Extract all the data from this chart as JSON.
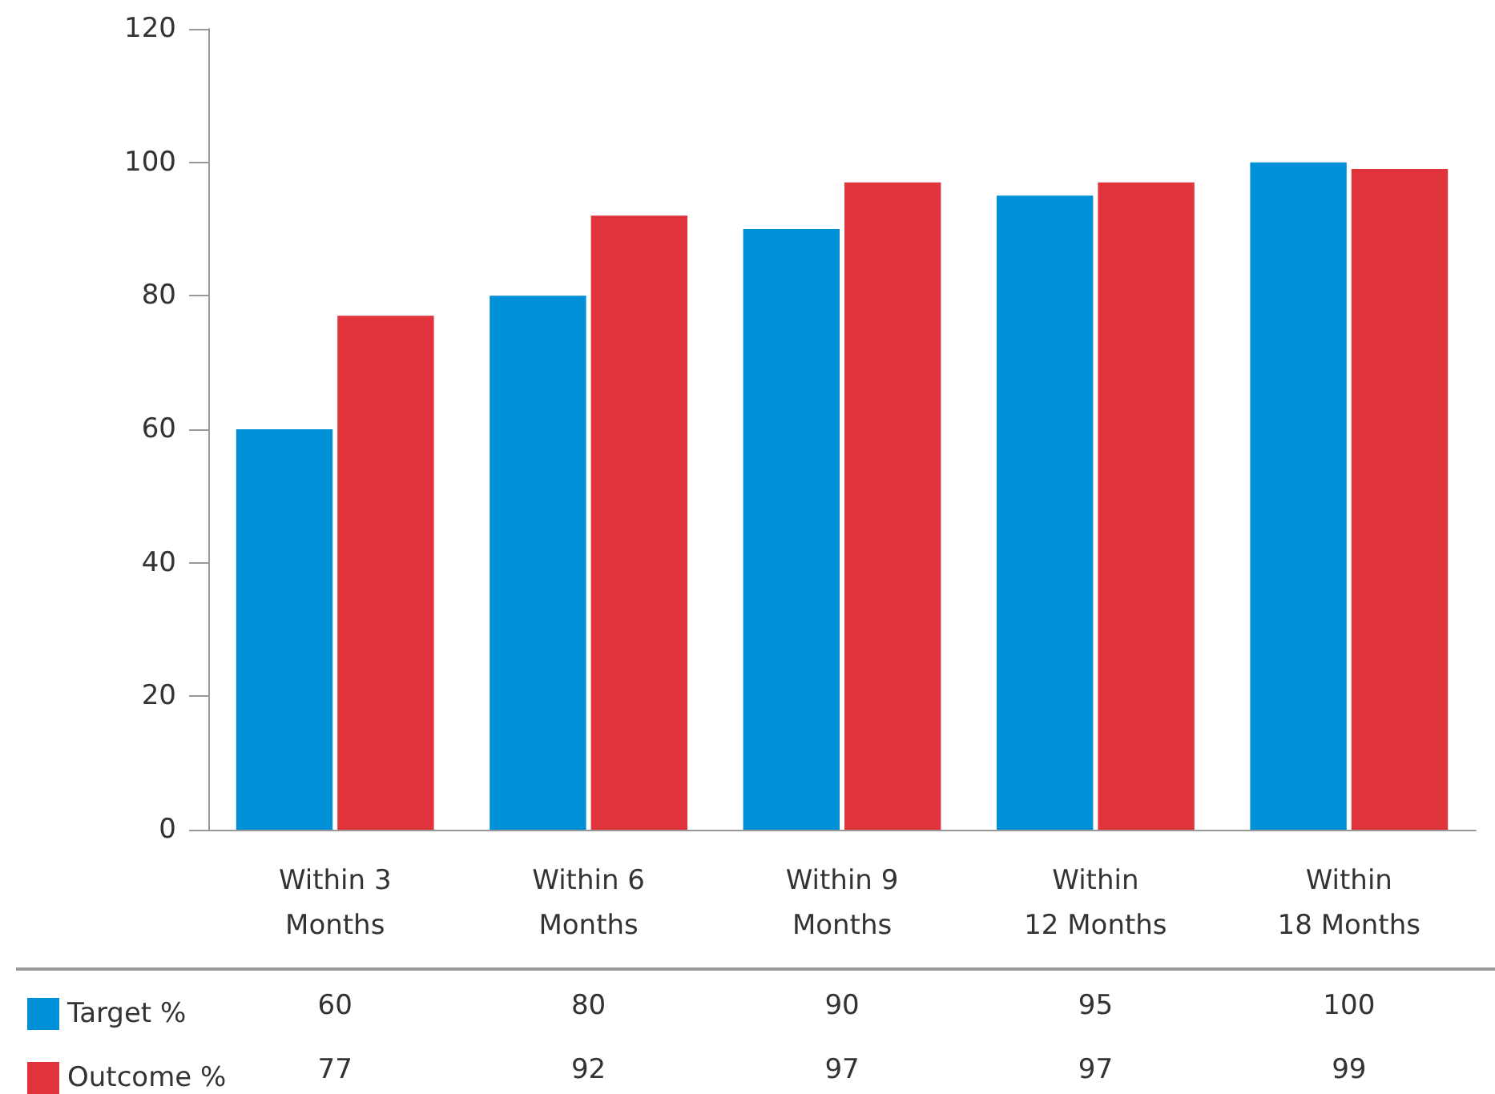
{
  "chart_data": {
    "type": "bar",
    "categories": [
      "Within 3\nMonths",
      "Within 6\nMonths",
      "Within 9\nMonths",
      "Within\n12 Months",
      "Within\n18 Months"
    ],
    "series": [
      {
        "name": "Target %",
        "color": "#0090d8",
        "values": [
          60,
          80,
          90,
          95,
          100
        ]
      },
      {
        "name": "Outcome %",
        "color": "#e0333c",
        "values": [
          77,
          92,
          97,
          97,
          99
        ]
      }
    ],
    "ylim": [
      0,
      120
    ],
    "yticks": [
      0,
      20,
      40,
      60,
      80,
      100,
      120
    ],
    "grid": false,
    "legend": "bottom left",
    "data_labels": true
  }
}
